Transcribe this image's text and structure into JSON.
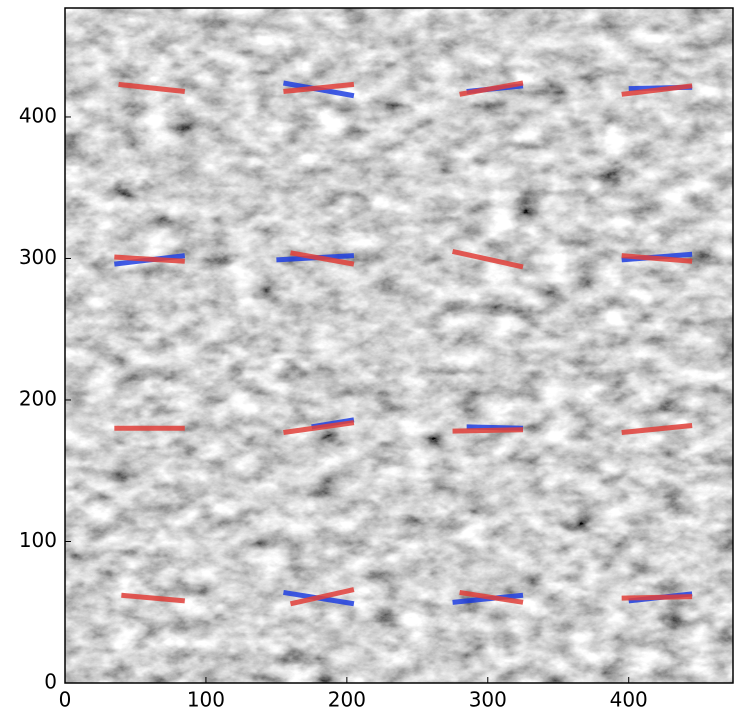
{
  "chart_data": {
    "type": "image-segments",
    "xlim": [
      0,
      474
    ],
    "ylim": [
      0,
      477
    ],
    "xticks": [
      0,
      100,
      200,
      300,
      400
    ],
    "yticks": [
      0,
      100,
      200,
      300,
      400
    ],
    "segments": [
      {
        "color": "#e0403a",
        "x": [
          38,
          85
        ],
        "y": [
          423,
          418
        ]
      },
      {
        "color": "#2040e0",
        "x": [
          155,
          205
        ],
        "y": [
          424,
          415
        ]
      },
      {
        "color": "#e0403a",
        "x": [
          155,
          205
        ],
        "y": [
          418,
          423
        ]
      },
      {
        "color": "#2040e0",
        "x": [
          285,
          325
        ],
        "y": [
          418,
          422
        ]
      },
      {
        "color": "#e0403a",
        "x": [
          280,
          325
        ],
        "y": [
          416,
          424
        ]
      },
      {
        "color": "#2040e0",
        "x": [
          400,
          445
        ],
        "y": [
          420,
          421
        ]
      },
      {
        "color": "#e0403a",
        "x": [
          395,
          445
        ],
        "y": [
          416,
          422
        ]
      },
      {
        "color": "#2040e0",
        "x": [
          35,
          85
        ],
        "y": [
          296,
          302
        ]
      },
      {
        "color": "#e0403a",
        "x": [
          35,
          85
        ],
        "y": [
          301,
          298
        ]
      },
      {
        "color": "#2040e0",
        "x": [
          150,
          205
        ],
        "y": [
          299,
          302
        ]
      },
      {
        "color": "#e0403a",
        "x": [
          160,
          205
        ],
        "y": [
          304,
          296
        ]
      },
      {
        "color": "#e0403a",
        "x": [
          275,
          325
        ],
        "y": [
          305,
          294
        ]
      },
      {
        "color": "#2040e0",
        "x": [
          395,
          445
        ],
        "y": [
          299,
          303
        ]
      },
      {
        "color": "#e0403a",
        "x": [
          395,
          445
        ],
        "y": [
          302,
          298
        ]
      },
      {
        "color": "#e0403a",
        "x": [
          35,
          85
        ],
        "y": [
          180,
          180
        ]
      },
      {
        "color": "#2040e0",
        "x": [
          175,
          205
        ],
        "y": [
          181,
          186
        ]
      },
      {
        "color": "#e0403a",
        "x": [
          155,
          205
        ],
        "y": [
          177,
          184
        ]
      },
      {
        "color": "#2040e0",
        "x": [
          285,
          325
        ],
        "y": [
          181,
          180
        ]
      },
      {
        "color": "#e0403a",
        "x": [
          275,
          325
        ],
        "y": [
          178,
          179
        ]
      },
      {
        "color": "#e0403a",
        "x": [
          395,
          445
        ],
        "y": [
          177,
          182
        ]
      },
      {
        "color": "#e0403a",
        "x": [
          40,
          85
        ],
        "y": [
          62,
          58
        ]
      },
      {
        "color": "#2040e0",
        "x": [
          155,
          205
        ],
        "y": [
          64,
          56
        ]
      },
      {
        "color": "#e0403a",
        "x": [
          160,
          205
        ],
        "y": [
          56,
          66
        ]
      },
      {
        "color": "#2040e0",
        "x": [
          275,
          325
        ],
        "y": [
          57,
          62
        ]
      },
      {
        "color": "#e0403a",
        "x": [
          280,
          325
        ],
        "y": [
          64,
          57
        ]
      },
      {
        "color": "#2040e0",
        "x": [
          400,
          445
        ],
        "y": [
          58,
          63
        ]
      },
      {
        "color": "#e0403a",
        "x": [
          395,
          445
        ],
        "y": [
          60,
          61
        ]
      }
    ]
  }
}
